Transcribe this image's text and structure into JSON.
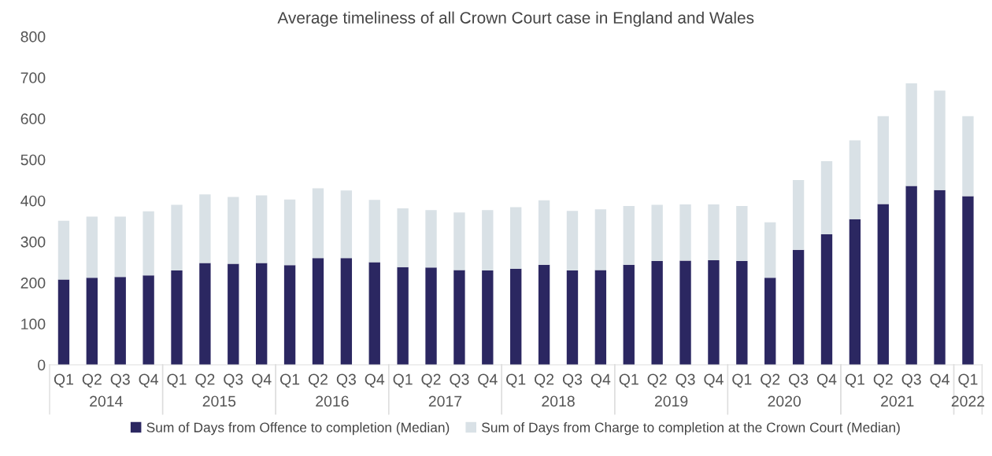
{
  "chart_data": {
    "type": "bar",
    "title": "Average timeliness of all Crown Court case in England and Wales",
    "categories": [
      "Q1",
      "Q2",
      "Q3",
      "Q4",
      "Q1",
      "Q2",
      "Q3",
      "Q4",
      "Q1",
      "Q2",
      "Q3",
      "Q4",
      "Q1",
      "Q2",
      "Q3",
      "Q4",
      "Q1",
      "Q2",
      "Q3",
      "Q4",
      "Q1",
      "Q2",
      "Q3",
      "Q4",
      "Q1",
      "Q2",
      "Q3",
      "Q4",
      "Q1",
      "Q2",
      "Q3",
      "Q4",
      "Q1"
    ],
    "annotations": [
      "2014",
      "2015",
      "2016",
      "2017",
      "2018",
      "2019",
      "2020",
      "2021",
      "2022"
    ],
    "stacked": true,
    "series": [
      {
        "name": "Sum of Days from Offence to completion (Median)",
        "color": "#2b2761",
        "values": [
          208,
          212,
          214,
          218,
          230,
          248,
          246,
          248,
          243,
          260,
          260,
          250,
          238,
          237,
          231,
          230,
          234,
          244,
          230,
          231,
          244,
          253,
          254,
          255,
          253,
          212,
          280,
          318,
          355,
          392,
          436,
          426,
          411
        ]
      },
      {
        "name": "Sum of Days from Charge to completion at the Crown Court (Median)",
        "color": "#d9e1e6",
        "values": [
          143,
          149,
          147,
          156,
          160,
          167,
          163,
          165,
          160,
          170,
          165,
          152,
          143,
          140,
          140,
          147,
          150,
          157,
          145,
          148,
          143,
          137,
          137,
          136,
          134,
          135,
          170,
          178,
          192,
          214,
          250,
          242,
          195
        ]
      }
    ],
    "ylim": [
      0,
      800
    ],
    "yticks": [
      0,
      100,
      200,
      300,
      400,
      500,
      600,
      700,
      800
    ],
    "grid": false,
    "legend": "bottom"
  }
}
